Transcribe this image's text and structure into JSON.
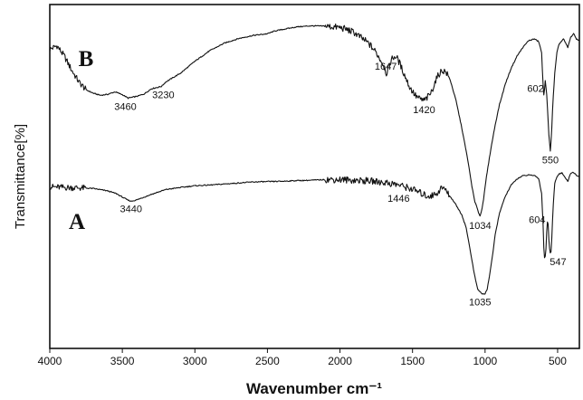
{
  "chart_data": {
    "type": "line",
    "xlabel": "Wavenumber cm⁻¹",
    "ylabel": "Transmittance[%]",
    "xlim": [
      4000,
      350
    ],
    "x_reversed": true,
    "x_ticks": [
      4000,
      3500,
      3000,
      2500,
      2000,
      1500,
      1000,
      500
    ],
    "y_ticks_shown": false,
    "grid": false,
    "series": [
      {
        "name": "B",
        "points": [
          [
            4000,
            87
          ],
          [
            3950,
            88
          ],
          [
            3900,
            85
          ],
          [
            3850,
            81
          ],
          [
            3800,
            77.5
          ],
          [
            3750,
            75.2
          ],
          [
            3700,
            74.2
          ],
          [
            3650,
            73.6
          ],
          [
            3600,
            73.9
          ],
          [
            3550,
            74.6
          ],
          [
            3500,
            73.8
          ],
          [
            3460,
            72.8
          ],
          [
            3400,
            73.3
          ],
          [
            3350,
            74
          ],
          [
            3300,
            75.5
          ],
          [
            3230,
            76.2
          ],
          [
            3200,
            77.5
          ],
          [
            3100,
            80
          ],
          [
            3000,
            83.5
          ],
          [
            2900,
            86.5
          ],
          [
            2800,
            88.7
          ],
          [
            2700,
            90.1
          ],
          [
            2600,
            91
          ],
          [
            2500,
            91.5
          ],
          [
            2450,
            92.3
          ],
          [
            2400,
            92.7
          ],
          [
            2300,
            93.5
          ],
          [
            2200,
            93.8
          ],
          [
            2100,
            93.7
          ],
          [
            2000,
            93.3
          ],
          [
            1950,
            92.7
          ],
          [
            1900,
            91.8
          ],
          [
            1850,
            90.2
          ],
          [
            1800,
            88.6
          ],
          [
            1750,
            86
          ],
          [
            1700,
            82.5
          ],
          [
            1680,
            80
          ],
          [
            1660,
            82
          ],
          [
            1647,
            84
          ],
          [
            1620,
            85
          ],
          [
            1600,
            84
          ],
          [
            1560,
            80
          ],
          [
            1520,
            76
          ],
          [
            1480,
            73.5
          ],
          [
            1450,
            72.5
          ],
          [
            1420,
            72.1
          ],
          [
            1400,
            72.8
          ],
          [
            1370,
            74.5
          ],
          [
            1340,
            78
          ],
          [
            1310,
            80.3
          ],
          [
            1290,
            80.8
          ],
          [
            1270,
            80.4
          ],
          [
            1240,
            78
          ],
          [
            1200,
            72
          ],
          [
            1160,
            64
          ],
          [
            1120,
            55
          ],
          [
            1090,
            47
          ],
          [
            1070,
            42.5
          ],
          [
            1055,
            41
          ],
          [
            1045,
            39.5
          ],
          [
            1034,
            38.4
          ],
          [
            1022,
            40.5
          ],
          [
            1010,
            43.5
          ],
          [
            990,
            50
          ],
          [
            960,
            58
          ],
          [
            930,
            65
          ],
          [
            900,
            71
          ],
          [
            860,
            77
          ],
          [
            820,
            81.5
          ],
          [
            780,
            85
          ],
          [
            740,
            87.5
          ],
          [
            700,
            89.5
          ],
          [
            660,
            90
          ],
          [
            630,
            89.2
          ],
          [
            610,
            86
          ],
          [
            602,
            78
          ],
          [
            594,
            73
          ],
          [
            585,
            78
          ],
          [
            575,
            74
          ],
          [
            560,
            62
          ],
          [
            550,
            57.5
          ],
          [
            542,
            62
          ],
          [
            532,
            72
          ],
          [
            520,
            80
          ],
          [
            505,
            86
          ],
          [
            490,
            88.5
          ],
          [
            460,
            90
          ],
          [
            430,
            87.5
          ],
          [
            410,
            90.5
          ],
          [
            390,
            91.5
          ],
          [
            370,
            90
          ],
          [
            350,
            89.5
          ]
        ],
        "peak_labels": [
          {
            "wavenumber": 3460,
            "label": "3460"
          },
          {
            "wavenumber": 3230,
            "label": "3230"
          },
          {
            "wavenumber": 1647,
            "label": "1647"
          },
          {
            "wavenumber": 1420,
            "label": "1420"
          },
          {
            "wavenumber": 1034,
            "label": "1034"
          },
          {
            "wavenumber": 602,
            "label": "602"
          },
          {
            "wavenumber": 550,
            "label": "550"
          }
        ]
      },
      {
        "name": "A",
        "points": [
          [
            4000,
            47
          ],
          [
            3900,
            46.8
          ],
          [
            3800,
            46.7
          ],
          [
            3700,
            46.5
          ],
          [
            3600,
            45.8
          ],
          [
            3540,
            45
          ],
          [
            3500,
            44
          ],
          [
            3460,
            43.1
          ],
          [
            3440,
            42.8
          ],
          [
            3400,
            43.2
          ],
          [
            3350,
            44
          ],
          [
            3300,
            44.8
          ],
          [
            3200,
            46.2
          ],
          [
            3100,
            46.8
          ],
          [
            3000,
            47.3
          ],
          [
            2900,
            47.5
          ],
          [
            2800,
            47.8
          ],
          [
            2700,
            48.1
          ],
          [
            2600,
            48.4
          ],
          [
            2500,
            48.5
          ],
          [
            2400,
            48.6
          ],
          [
            2300,
            48.8
          ],
          [
            2200,
            48.9
          ],
          [
            2100,
            49.1
          ],
          [
            2000,
            49.1
          ],
          [
            1900,
            48.9
          ],
          [
            1800,
            48.7
          ],
          [
            1700,
            48.3
          ],
          [
            1600,
            47.6
          ],
          [
            1500,
            46.3
          ],
          [
            1446,
            45.2
          ],
          [
            1400,
            44.3
          ],
          [
            1360,
            44.5
          ],
          [
            1330,
            45.2
          ],
          [
            1300,
            46.7
          ],
          [
            1280,
            46.5
          ],
          [
            1250,
            44.7
          ],
          [
            1220,
            43
          ],
          [
            1190,
            41
          ],
          [
            1160,
            38.8
          ],
          [
            1130,
            35
          ],
          [
            1100,
            28
          ],
          [
            1080,
            23
          ],
          [
            1060,
            18.8
          ],
          [
            1050,
            17.2
          ],
          [
            1035,
            16.5
          ],
          [
            1020,
            15.8
          ],
          [
            1000,
            15.9
          ],
          [
            985,
            17.3
          ],
          [
            970,
            21
          ],
          [
            950,
            26.5
          ],
          [
            930,
            33
          ],
          [
            900,
            39.5
          ],
          [
            860,
            44.3
          ],
          [
            820,
            47.5
          ],
          [
            780,
            49.3
          ],
          [
            740,
            50.2
          ],
          [
            700,
            50.4
          ],
          [
            660,
            50.3
          ],
          [
            630,
            49.4
          ],
          [
            610,
            45
          ],
          [
            600,
            36
          ],
          [
            594,
            28
          ],
          [
            588,
            25.6
          ],
          [
            580,
            29
          ],
          [
            572,
            37
          ],
          [
            565,
            36
          ],
          [
            558,
            30
          ],
          [
            547,
            26.8
          ],
          [
            540,
            32
          ],
          [
            530,
            42
          ],
          [
            520,
            48
          ],
          [
            505,
            50
          ],
          [
            490,
            50.8
          ],
          [
            470,
            51
          ],
          [
            450,
            49.8
          ],
          [
            430,
            48.5
          ],
          [
            410,
            51
          ],
          [
            390,
            51.2
          ],
          [
            370,
            50.3
          ],
          [
            350,
            50
          ]
        ],
        "peak_labels": [
          {
            "wavenumber": 3440,
            "label": "3440"
          },
          {
            "wavenumber": 1446,
            "label": "1446"
          },
          {
            "wavenumber": 1035,
            "label": "1035"
          },
          {
            "wavenumber": 604,
            "label": "604"
          },
          {
            "wavenumber": 547,
            "label": "547"
          }
        ]
      }
    ]
  }
}
